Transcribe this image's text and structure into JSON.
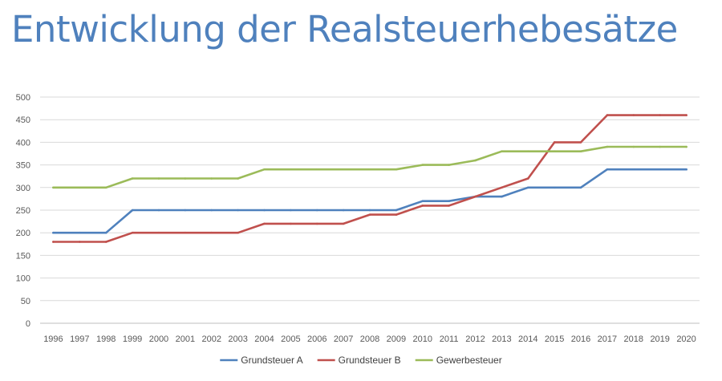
{
  "chart_data": {
    "type": "line",
    "title": "Entwicklung der Realsteuerhebesätze",
    "xlabel": "",
    "ylabel": "",
    "x": [
      "1996",
      "1997",
      "1998",
      "1999",
      "2000",
      "2001",
      "2002",
      "2003",
      "2004",
      "2005",
      "2006",
      "2007",
      "2008",
      "2009",
      "2010",
      "2011",
      "2012",
      "2013",
      "2014",
      "2015",
      "2016",
      "2017",
      "2018",
      "2019",
      "2020"
    ],
    "ylim": [
      0,
      500
    ],
    "yticks": [
      0,
      50,
      100,
      150,
      200,
      250,
      300,
      350,
      400,
      450,
      500
    ],
    "grid": true,
    "legend_position": "bottom",
    "series": [
      {
        "name": "Grundsteuer A",
        "color": "#4f81bd",
        "values": [
          200,
          200,
          200,
          250,
          250,
          250,
          250,
          250,
          250,
          250,
          250,
          250,
          250,
          250,
          270,
          270,
          280,
          280,
          300,
          300,
          300,
          340,
          340,
          340,
          340
        ]
      },
      {
        "name": "Grundsteuer B",
        "color": "#c0504d",
        "values": [
          180,
          180,
          180,
          200,
          200,
          200,
          200,
          200,
          220,
          220,
          220,
          220,
          240,
          240,
          260,
          260,
          280,
          300,
          320,
          400,
          400,
          460,
          460,
          460,
          460
        ]
      },
      {
        "name": "Gewerbesteuer",
        "color": "#9bbb59",
        "values": [
          300,
          300,
          300,
          320,
          320,
          320,
          320,
          320,
          340,
          340,
          340,
          340,
          340,
          340,
          350,
          350,
          360,
          380,
          380,
          380,
          380,
          390,
          390,
          390,
          390
        ]
      }
    ]
  }
}
